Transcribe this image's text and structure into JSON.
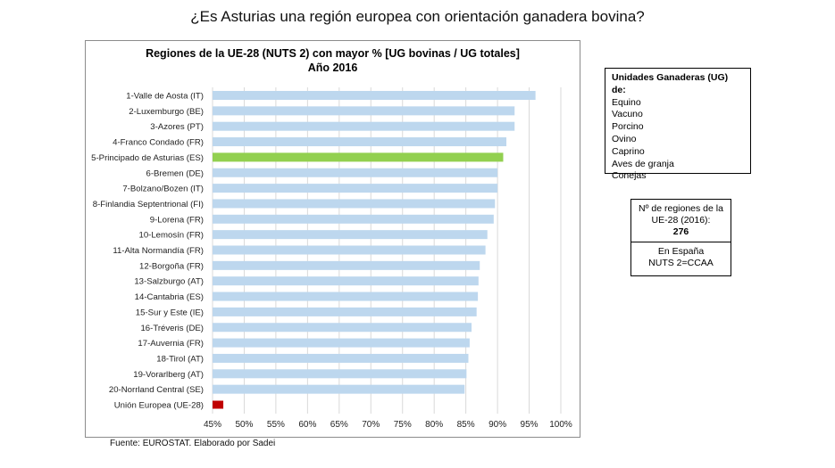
{
  "slide_title": "¿Es Asturias una región europea con orientación ganadera bovina?",
  "source": "Fuente: EUROSTAT. Elaborado por Sadei",
  "ug_box": {
    "title": "Unidades Ganaderas (UG) de:",
    "items": [
      "Equino",
      "Vacuno",
      "Porcino",
      "Ovino",
      "Caprino",
      "Aves de granja",
      "Conejas"
    ]
  },
  "regions_box": {
    "line1": "Nº de regiones de la",
    "line2": "UE-28 (2016):",
    "count": "276",
    "line3": "En España",
    "line4": "NUTS 2=CCAA"
  },
  "colors": {
    "default_bar": "#bdd7ee",
    "highlight_bar": "#92d050",
    "eu_bar": "#c00000",
    "grid": "#d9d9d9"
  },
  "chart_data": {
    "type": "bar",
    "orientation": "horizontal",
    "title_line1": "Regiones de la UE-28 (NUTS 2) con mayor % [UG bovinas / UG totales]",
    "title_line2": "Año 2016",
    "categories": [
      "1-Valle de Aosta (IT)",
      "2-Luxemburgo (BE)",
      "3-Azores (PT)",
      "4-Franco Condado (FR)",
      "5-Principado de Asturias (ES)",
      "6-Bremen (DE)",
      "7-Bolzano/Bozen (IT)",
      "8-Finlandia Septentrional (FI)",
      "9-Lorena (FR)",
      "10-Lemosín (FR)",
      "11-Alta Normandía (FR)",
      "12-Borgoña (FR)",
      "13-Salzburgo (AT)",
      "14-Cantabria (ES)",
      "15-Sur y Este (IE)",
      "16-Tréveris (DE)",
      "17-Auvernia (FR)",
      "18-Tirol (AT)",
      "19-Vorarlberg (AT)",
      "20-Norrland Central (SE)",
      "Unión Europea (UE-28)"
    ],
    "values": [
      96.0,
      92.7,
      92.7,
      91.4,
      90.9,
      90.0,
      90.0,
      89.6,
      89.4,
      88.4,
      88.1,
      87.2,
      87.0,
      86.9,
      86.7,
      85.9,
      85.6,
      85.4,
      85.1,
      84.8,
      46.7
    ],
    "highlight": [
      "5-Principado de Asturias (ES)"
    ],
    "reference": [
      "Unión Europea (UE-28)"
    ],
    "xlim": [
      45,
      100
    ],
    "xticks": [
      45,
      50,
      55,
      60,
      65,
      70,
      75,
      80,
      85,
      90,
      95,
      100
    ],
    "xtick_labels": [
      "45%",
      "50%",
      "55%",
      "60%",
      "65%",
      "70%",
      "75%",
      "80%",
      "85%",
      "90%",
      "95%",
      "100%"
    ],
    "grid": true,
    "legend": "none"
  }
}
